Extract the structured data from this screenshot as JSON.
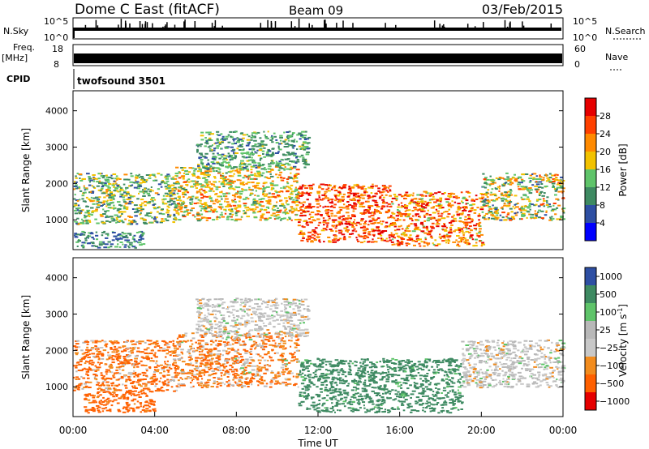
{
  "header": {
    "station": "Dome C East (fitACF)",
    "beam": "Beam 09",
    "date": "03/Feb/2015"
  },
  "params": {
    "nsky_label": "N.Sky",
    "nsky_ticks": [
      "10^5",
      "10^0"
    ],
    "nsearch_label": "N.Search",
    "nsearch_ticks": [
      "10^5",
      "10^0"
    ],
    "freq_label": "Freq.",
    "freq_unit": "[MHz]",
    "freq_ticks": [
      "18",
      "8"
    ],
    "nave_label": "Nave",
    "nave_ticks": [
      "60",
      "0"
    ],
    "cpid_label": "CPID",
    "cpid_value": "twofsound 3501"
  },
  "colors": {
    "power": [
      "#0000ff",
      "#2e4fa3",
      "#3e8a62",
      "#5fc46a",
      "#f2c200",
      "#ff8a00",
      "#ff4000",
      "#e60000"
    ],
    "velocity": [
      "#2e4fa3",
      "#3e8a62",
      "#5fc46a",
      "#b8b8b8",
      "#c8c8c8",
      "#f28c1e",
      "#ff6000",
      "#e60000"
    ]
  },
  "chart_data": [
    {
      "type": "heatmap",
      "ylabel": "Slant Range [km]",
      "xlabel": "Time UT",
      "x_ticks": [
        "00:00",
        "04:00",
        "08:00",
        "12:00",
        "16:00",
        "20:00",
        "00:00"
      ],
      "xlim_hours": [
        0,
        24
      ],
      "ylim": [
        180,
        4550
      ],
      "y_ticks": [
        "1000",
        "2000",
        "3000",
        "4000"
      ],
      "colorbar": {
        "label": "Power [dB]",
        "ticks": [
          "28",
          "24",
          "20",
          "16",
          "12",
          "8",
          "4"
        ],
        "range": [
          0,
          30
        ]
      },
      "regions": [
        {
          "t0": 0.0,
          "t1": 5.0,
          "r0": 900,
          "r1": 2300,
          "v0": 6,
          "v1": 20
        },
        {
          "t0": 0.0,
          "t1": 3.5,
          "r0": 250,
          "r1": 700,
          "v0": 4,
          "v1": 14
        },
        {
          "t0": 5.0,
          "t1": 11.0,
          "r0": 1000,
          "r1": 2500,
          "v0": 10,
          "v1": 24
        },
        {
          "t0": 6.0,
          "t1": 11.5,
          "r0": 2400,
          "r1": 3450,
          "v0": 6,
          "v1": 16
        },
        {
          "t0": 11.0,
          "t1": 15.5,
          "r0": 400,
          "r1": 2000,
          "v0": 18,
          "v1": 30
        },
        {
          "t0": 15.5,
          "t1": 20.0,
          "r0": 300,
          "r1": 1800,
          "v0": 14,
          "v1": 30
        },
        {
          "t0": 20.0,
          "t1": 24.0,
          "r0": 1000,
          "r1": 2300,
          "v0": 6,
          "v1": 24
        }
      ]
    },
    {
      "type": "heatmap",
      "ylabel": "Slant Range [km]",
      "xlabel": "Time UT",
      "x_ticks": [
        "00:00",
        "04:00",
        "08:00",
        "12:00",
        "16:00",
        "20:00",
        "00:00"
      ],
      "xlim_hours": [
        0,
        24
      ],
      "ylim": [
        180,
        4550
      ],
      "y_ticks": [
        "1000",
        "2000",
        "3000",
        "4000"
      ],
      "colorbar": {
        "label": "Velocity [m s",
        "label_sup": "-1",
        "ticks": [
          "1000",
          "500",
          "100",
          "25",
          "−25",
          "−100",
          "−500",
          "−1000"
        ],
        "range": [
          -1000,
          1000
        ]
      },
      "regions": [
        {
          "t0": 0.0,
          "t1": 5.0,
          "r0": 900,
          "r1": 2300,
          "v0": -300,
          "v1": 20
        },
        {
          "t0": 0.5,
          "t1": 4.0,
          "r0": 300,
          "r1": 900,
          "v0": -400,
          "v1": -80
        },
        {
          "t0": 5.0,
          "t1": 11.0,
          "r0": 1000,
          "r1": 2500,
          "v0": -200,
          "v1": 30
        },
        {
          "t0": 6.0,
          "t1": 11.5,
          "r0": 2400,
          "r1": 3450,
          "v0": -30,
          "v1": 30
        },
        {
          "t0": 11.0,
          "t1": 19.0,
          "r0": 300,
          "r1": 1800,
          "v0": 80,
          "v1": 450
        },
        {
          "t0": 19.0,
          "t1": 24.0,
          "r0": 1000,
          "r1": 2300,
          "v0": -30,
          "v1": 30
        }
      ]
    }
  ]
}
